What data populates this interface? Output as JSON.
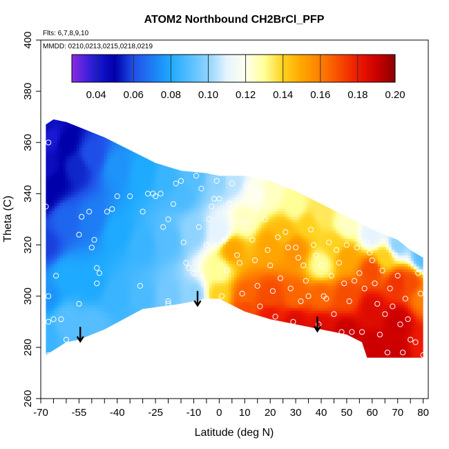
{
  "chart_data": {
    "type": "heatmap",
    "title": "ATOM2 Northbound CH2BrCl_PFP",
    "notes": [
      "Flts: 6,7,8,9,10",
      "MMDD: 0210,0213,0215,0218,0219"
    ],
    "xlabel": "Latitude (deg N)",
    "ylabel": "Theta (C)",
    "xlim": [
      -70,
      82
    ],
    "ylim": [
      260,
      400
    ],
    "x_ticks": [
      -70,
      -65,
      -60,
      -55,
      -50,
      -45,
      -40,
      -35,
      -30,
      -25,
      -20,
      -15,
      -10,
      -5,
      0,
      5,
      10,
      15,
      20,
      25,
      30,
      35,
      40,
      45,
      50,
      55,
      60,
      65,
      70,
      75,
      80
    ],
    "x_tick_labels": [
      "-70",
      "",
      "",
      "-55",
      "",
      "",
      "-40",
      "",
      "",
      "-25",
      "",
      "",
      "-10",
      "",
      "0",
      "",
      "10",
      "",
      "20",
      "",
      "30",
      "",
      "40",
      "",
      "50",
      "",
      "60",
      "",
      "70",
      "",
      "80"
    ],
    "y_ticks": [
      260,
      280,
      300,
      320,
      340,
      360,
      380,
      400
    ],
    "y_tick_labels": [
      "260",
      "280",
      "300",
      "320",
      "340",
      "360",
      "380",
      "400"
    ],
    "colorbar": {
      "range": [
        0.027,
        0.2
      ],
      "ticks": [
        0.04,
        0.06,
        0.08,
        0.1,
        0.12,
        0.14,
        0.16,
        0.18,
        0.2
      ],
      "tick_labels": [
        "0.04",
        "0.06",
        "0.08",
        "0.10",
        "0.12",
        "0.14",
        "0.16",
        "0.18",
        "0.20"
      ],
      "stops": [
        {
          "v": 0.027,
          "c": "#8a2be2"
        },
        {
          "v": 0.04,
          "c": "#1a1ad4"
        },
        {
          "v": 0.05,
          "c": "#0000aa"
        },
        {
          "v": 0.06,
          "c": "#1f4fe8"
        },
        {
          "v": 0.08,
          "c": "#1eaaff"
        },
        {
          "v": 0.1,
          "c": "#8fd3ff"
        },
        {
          "v": 0.11,
          "c": "#e6f4ff"
        },
        {
          "v": 0.12,
          "c": "#ffffee"
        },
        {
          "v": 0.13,
          "c": "#ffff99"
        },
        {
          "v": 0.14,
          "c": "#ffd21e"
        },
        {
          "v": 0.15,
          "c": "#ffa500"
        },
        {
          "v": 0.16,
          "c": "#ff7f00"
        },
        {
          "v": 0.18,
          "c": "#ee1a00"
        },
        {
          "v": 0.19,
          "c": "#cc0000"
        },
        {
          "v": 0.2,
          "c": "#8b0000"
        }
      ]
    },
    "field_bounds": {
      "upper": [
        [
          -68,
          367
        ],
        [
          -65,
          369
        ],
        [
          -60,
          368
        ],
        [
          -55,
          366
        ],
        [
          -45,
          362
        ],
        [
          -35,
          357
        ],
        [
          -25,
          352
        ],
        [
          -15,
          349
        ],
        [
          -5,
          348
        ],
        [
          0,
          347
        ],
        [
          10,
          347
        ],
        [
          20,
          345
        ],
        [
          30,
          341
        ],
        [
          40,
          336
        ],
        [
          50,
          331
        ],
        [
          60,
          326
        ],
        [
          70,
          322
        ],
        [
          75,
          318
        ],
        [
          80,
          315
        ]
      ],
      "lower": [
        [
          -68,
          277
        ],
        [
          -60,
          282
        ],
        [
          -55,
          283
        ],
        [
          -45,
          287
        ],
        [
          -30,
          295
        ],
        [
          -15,
          297
        ],
        [
          -5,
          299
        ],
        [
          0,
          299
        ],
        [
          10,
          294
        ],
        [
          20,
          291
        ],
        [
          30,
          289
        ],
        [
          40,
          287
        ],
        [
          50,
          285
        ],
        [
          56,
          282
        ],
        [
          58,
          276
        ],
        [
          70,
          276
        ],
        [
          80,
          276
        ]
      ]
    },
    "field_nodes": [
      [
        -68,
        367,
        0.045
      ],
      [
        -68,
        340,
        0.05
      ],
      [
        -68,
        320,
        0.058
      ],
      [
        -68,
        300,
        0.075
      ],
      [
        -68,
        285,
        0.085
      ],
      [
        -60,
        360,
        0.05
      ],
      [
        -60,
        330,
        0.065
      ],
      [
        -60,
        308,
        0.08
      ],
      [
        -60,
        290,
        0.09
      ],
      [
        -50,
        355,
        0.06
      ],
      [
        -50,
        330,
        0.07
      ],
      [
        -50,
        305,
        0.08
      ],
      [
        -50,
        288,
        0.09
      ],
      [
        -40,
        350,
        0.075
      ],
      [
        -40,
        325,
        0.08
      ],
      [
        -40,
        300,
        0.085
      ],
      [
        -30,
        348,
        0.08
      ],
      [
        -30,
        320,
        0.085
      ],
      [
        -30,
        300,
        0.088
      ],
      [
        -20,
        345,
        0.085
      ],
      [
        -20,
        322,
        0.09
      ],
      [
        -20,
        300,
        0.095
      ],
      [
        -10,
        347,
        0.09
      ],
      [
        -10,
        325,
        0.1
      ],
      [
        -10,
        300,
        0.1
      ],
      [
        0,
        345,
        0.1
      ],
      [
        0,
        325,
        0.11
      ],
      [
        0,
        310,
        0.13
      ],
      [
        0,
        300,
        0.14
      ],
      [
        5,
        318,
        0.15
      ],
      [
        10,
        330,
        0.125
      ],
      [
        10,
        300,
        0.165
      ],
      [
        10,
        295,
        0.17
      ],
      [
        15,
        340,
        0.12
      ],
      [
        20,
        340,
        0.125
      ],
      [
        20,
        320,
        0.15
      ],
      [
        20,
        300,
        0.17
      ],
      [
        20,
        292,
        0.18
      ],
      [
        30,
        335,
        0.13
      ],
      [
        30,
        318,
        0.155
      ],
      [
        30,
        300,
        0.165
      ],
      [
        30,
        290,
        0.185
      ],
      [
        40,
        332,
        0.135
      ],
      [
        40,
        312,
        0.13
      ],
      [
        40,
        300,
        0.165
      ],
      [
        40,
        288,
        0.185
      ],
      [
        50,
        328,
        0.125
      ],
      [
        50,
        315,
        0.15
      ],
      [
        50,
        300,
        0.17
      ],
      [
        50,
        286,
        0.19
      ],
      [
        60,
        324,
        0.11
      ],
      [
        60,
        310,
        0.17
      ],
      [
        60,
        295,
        0.185
      ],
      [
        60,
        280,
        0.19
      ],
      [
        70,
        320,
        0.1
      ],
      [
        70,
        305,
        0.175
      ],
      [
        70,
        290,
        0.19
      ],
      [
        70,
        278,
        0.19
      ],
      [
        80,
        315,
        0.09
      ],
      [
        80,
        300,
        0.16
      ],
      [
        80,
        280,
        0.18
      ],
      [
        -66,
        362,
        0.04
      ],
      [
        -67,
        350,
        0.045
      ],
      [
        -64,
        345,
        0.05
      ],
      [
        -56,
        350,
        0.055
      ],
      [
        -15,
        340,
        0.088
      ],
      [
        5,
        345,
        0.105
      ],
      [
        25,
        325,
        0.145
      ],
      [
        35,
        328,
        0.14
      ],
      [
        45,
        320,
        0.14
      ],
      [
        65,
        315,
        0.14
      ],
      [
        75,
        305,
        0.17
      ]
    ],
    "sample_points": [
      [
        -68,
        335
      ],
      [
        -67,
        360
      ],
      [
        -67,
        300
      ],
      [
        -67,
        290
      ],
      [
        -67,
        277
      ],
      [
        -65,
        291
      ],
      [
        -64,
        308
      ],
      [
        -62,
        291
      ],
      [
        -60,
        283
      ],
      [
        -55,
        297
      ],
      [
        -55,
        324
      ],
      [
        -54,
        331
      ],
      [
        -51,
        333
      ],
      [
        -50,
        319
      ],
      [
        -49,
        322
      ],
      [
        -48,
        311
      ],
      [
        -48,
        305
      ],
      [
        -47,
        309
      ],
      [
        -45,
        285
      ],
      [
        -44,
        333
      ],
      [
        -42,
        334
      ],
      [
        -40,
        339
      ],
      [
        -35,
        339
      ],
      [
        -31,
        304
      ],
      [
        -30,
        333
      ],
      [
        -28,
        340
      ],
      [
        -26,
        340
      ],
      [
        -25,
        339
      ],
      [
        -23,
        340
      ],
      [
        -22,
        327
      ],
      [
        -20,
        330
      ],
      [
        -20,
        297
      ],
      [
        -20,
        298
      ],
      [
        -18,
        336
      ],
      [
        -17,
        344
      ],
      [
        -15,
        345
      ],
      [
        -14,
        321
      ],
      [
        -13,
        313
      ],
      [
        -12,
        311
      ],
      [
        -10,
        309
      ],
      [
        -9,
        347
      ],
      [
        -8,
        327
      ],
      [
        -7,
        342
      ],
      [
        -5,
        320
      ],
      [
        -4,
        330
      ],
      [
        -3,
        335
      ],
      [
        -2,
        338
      ],
      [
        -1,
        345
      ],
      [
        0,
        338
      ],
      [
        1,
        300
      ],
      [
        2,
        322
      ],
      [
        3,
        310
      ],
      [
        4,
        336
      ],
      [
        5,
        344
      ],
      [
        6,
        330
      ],
      [
        7,
        316
      ],
      [
        8,
        313
      ],
      [
        9,
        301
      ],
      [
        10,
        329
      ],
      [
        11,
        343
      ],
      [
        12,
        336
      ],
      [
        13,
        322
      ],
      [
        14,
        314
      ],
      [
        15,
        304
      ],
      [
        16,
        296
      ],
      [
        17,
        340
      ],
      [
        18,
        330
      ],
      [
        19,
        318
      ],
      [
        20,
        312
      ],
      [
        21,
        302
      ],
      [
        22,
        292
      ],
      [
        23,
        323
      ],
      [
        24,
        307
      ],
      [
        25,
        343
      ],
      [
        26,
        325
      ],
      [
        27,
        319
      ],
      [
        28,
        303
      ],
      [
        29,
        290
      ],
      [
        30,
        319
      ],
      [
        31,
        315
      ],
      [
        32,
        298
      ],
      [
        33,
        312
      ],
      [
        34,
        306
      ],
      [
        35,
        300
      ],
      [
        36,
        326
      ],
      [
        37,
        320
      ],
      [
        38,
        316
      ],
      [
        39,
        289
      ],
      [
        40,
        312
      ],
      [
        41,
        300
      ],
      [
        42,
        299
      ],
      [
        43,
        321
      ],
      [
        44,
        308
      ],
      [
        45,
        293
      ],
      [
        46,
        318
      ],
      [
        47,
        313
      ],
      [
        48,
        286
      ],
      [
        49,
        305
      ],
      [
        50,
        320
      ],
      [
        51,
        298
      ],
      [
        52,
        286
      ],
      [
        53,
        306
      ],
      [
        54,
        319
      ],
      [
        55,
        309
      ],
      [
        56,
        286
      ],
      [
        57,
        303
      ],
      [
        58,
        321
      ],
      [
        59,
        317
      ],
      [
        60,
        314
      ],
      [
        61,
        305
      ],
      [
        62,
        297
      ],
      [
        63,
        285
      ],
      [
        64,
        310
      ],
      [
        65,
        293
      ],
      [
        66,
        278
      ],
      [
        67,
        303
      ],
      [
        68,
        296
      ],
      [
        69,
        316
      ],
      [
        70,
        308
      ],
      [
        71,
        289
      ],
      [
        72,
        278
      ],
      [
        73,
        299
      ],
      [
        74,
        291
      ],
      [
        75,
        283
      ],
      [
        76,
        322
      ],
      [
        77,
        282
      ],
      [
        78,
        309
      ],
      [
        79,
        301
      ],
      [
        80,
        277
      ],
      [
        80,
        323
      ]
    ],
    "arrows": [
      [
        -54.5,
        288
      ],
      [
        -8.5,
        302
      ],
      [
        38.5,
        292
      ]
    ]
  }
}
